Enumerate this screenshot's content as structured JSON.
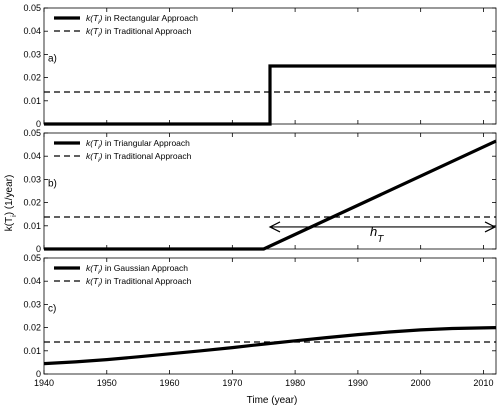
{
  "chart_data": {
    "type": "line",
    "xlabel": "Time (year)",
    "ylabel": "k(T_i) (1/year)",
    "xlim": [
      1940,
      2012
    ],
    "xticks": [
      1940,
      1950,
      1960,
      1970,
      1980,
      1990,
      2000,
      2010
    ],
    "grid": false,
    "legend_placement": "top-left",
    "panels": [
      {
        "id": "a",
        "tag": "a)",
        "ylim": [
          0,
          0.05
        ],
        "yticks": [
          "0",
          "0.01",
          "0.02",
          "0.03",
          "0.04",
          "0.05"
        ],
        "series": [
          {
            "name": "k(T_i) in Rectangular Approach",
            "style": "solid",
            "x": [
              1940,
              1976,
              1976,
              2012
            ],
            "y": [
              0,
              0,
              0.025,
              0.025
            ]
          },
          {
            "name": "k(T_i) in Traditional Approach",
            "style": "dashed",
            "x": [
              1940,
              2012
            ],
            "y": [
              0.0138,
              0.0138
            ]
          }
        ]
      },
      {
        "id": "b",
        "tag": "b)",
        "ylim": [
          0,
          0.05
        ],
        "yticks": [
          "0",
          "0.01",
          "0.02",
          "0.03",
          "0.04",
          "0.05"
        ],
        "series": [
          {
            "name": "k(T_i) in Triangular Approach",
            "style": "solid",
            "x": [
              1940,
              1975,
              2012
            ],
            "y": [
              0,
              0,
              0.0465
            ]
          },
          {
            "name": "k(T_i) in Traditional Approach",
            "style": "dashed",
            "x": [
              1940,
              2012
            ],
            "y": [
              0.0138,
              0.0138
            ]
          }
        ],
        "annotation": {
          "text": "h",
          "subscript": "T",
          "arrow_from": 1976,
          "arrow_to": 2012,
          "arrow_y": 0.0095,
          "text_x": 1993,
          "text_y": 0.0055
        }
      },
      {
        "id": "c",
        "tag": "c)",
        "ylim": [
          0,
          0.05
        ],
        "yticks": [
          "0",
          "0.01",
          "0.02",
          "0.03",
          "0.04",
          "0.05"
        ],
        "series": [
          {
            "name": "k(T_i) in Gaussian Approach",
            "style": "solid",
            "x": [
              1940,
              1945,
              1950,
              1955,
              1960,
              1965,
              1970,
              1975,
              1980,
              1985,
              1990,
              1995,
              2000,
              2005,
              2012
            ],
            "y": [
              0.0045,
              0.0052,
              0.0062,
              0.0074,
              0.0087,
              0.01,
              0.0114,
              0.0129,
              0.0143,
              0.0157,
              0.017,
              0.0181,
              0.019,
              0.0196,
              0.02
            ]
          },
          {
            "name": "k(T_i) in Traditional Approach",
            "style": "dashed",
            "x": [
              1940,
              2012
            ],
            "y": [
              0.0138,
              0.0138
            ]
          }
        ]
      }
    ]
  }
}
